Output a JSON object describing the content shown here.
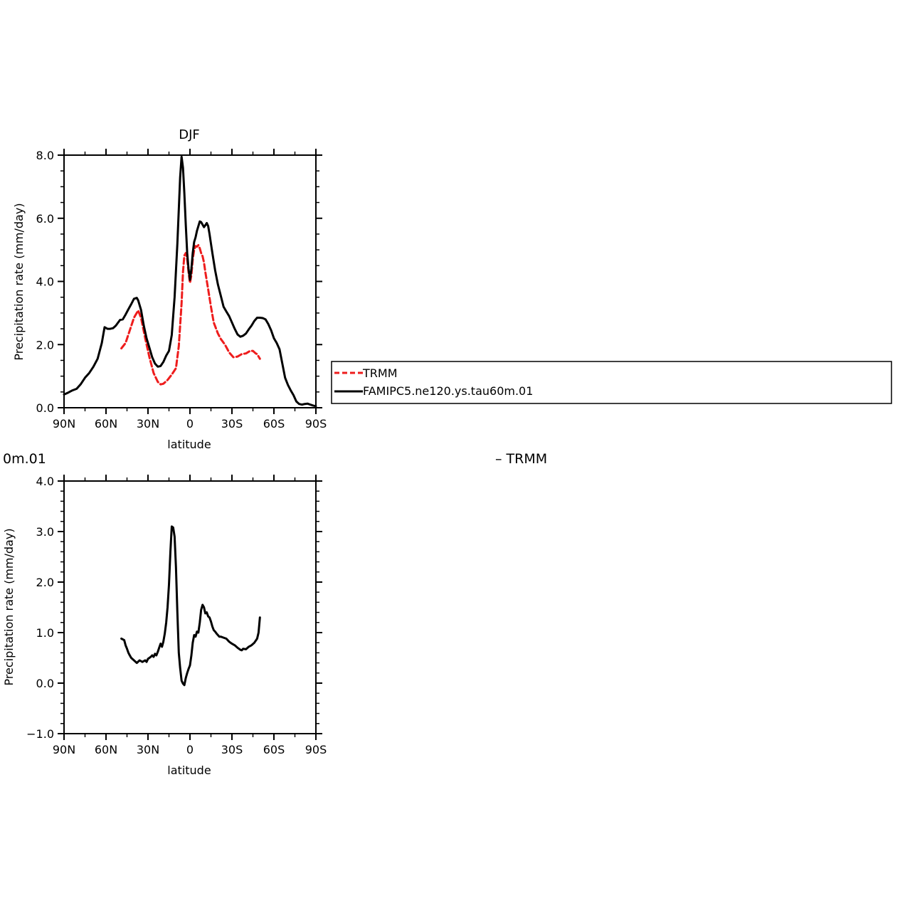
{
  "chart_data": [
    {
      "type": "line",
      "title": "DJF",
      "xlabel": "latitude",
      "ylabel": "Precipitation rate (mm/day)",
      "xlim": [
        90,
        -90
      ],
      "ylim": [
        0,
        8
      ],
      "x_ticks": [
        {
          "value": 90,
          "label": "90N"
        },
        {
          "value": 60,
          "label": "60N"
        },
        {
          "value": 30,
          "label": "30N"
        },
        {
          "value": 0,
          "label": "0"
        },
        {
          "value": -30,
          "label": "30S"
        },
        {
          "value": -60,
          "label": "60S"
        },
        {
          "value": -90,
          "label": "90S"
        }
      ],
      "y_ticks": [
        {
          "value": 0,
          "label": "0.0"
        },
        {
          "value": 2,
          "label": "2.0"
        },
        {
          "value": 4,
          "label": "4.0"
        },
        {
          "value": 6,
          "label": "6.0"
        },
        {
          "value": 8,
          "label": "8.0"
        }
      ],
      "grid": false,
      "legend": {
        "placement": "right",
        "entries": [
          {
            "name": "TRMM",
            "color": "#ee1c1c",
            "dash": "dashed"
          },
          {
            "name": "FAMIPC5.ne120.ys.tau60m.01",
            "color": "#000000",
            "dash": "solid"
          }
        ]
      },
      "series": [
        {
          "name": "TRMM",
          "color": "#ee1c1c",
          "dash": "dashed",
          "x": [
            49,
            46,
            43,
            40,
            37,
            35,
            32,
            29,
            26,
            23,
            21,
            19,
            16,
            13,
            10,
            8,
            6,
            5,
            4,
            3,
            2,
            1,
            0,
            -1,
            -2,
            -3,
            -4,
            -5,
            -6,
            -7,
            -8,
            -9,
            -10,
            -11,
            -13,
            -15,
            -17,
            -20,
            -22,
            -25,
            -28,
            -31,
            -34,
            -37,
            -40,
            -43,
            -45,
            -47,
            -48,
            -50
          ],
          "y": [
            1.88,
            2.05,
            2.45,
            2.85,
            3.08,
            2.85,
            2.2,
            1.6,
            1.1,
            0.82,
            0.74,
            0.76,
            0.88,
            1.05,
            1.25,
            1.95,
            3.3,
            4.3,
            4.82,
            4.9,
            4.7,
            4.3,
            3.95,
            4.2,
            4.7,
            5.0,
            5.12,
            5.1,
            5.15,
            5.05,
            4.9,
            4.8,
            4.6,
            4.3,
            3.75,
            3.2,
            2.7,
            2.35,
            2.18,
            2.0,
            1.75,
            1.6,
            1.62,
            1.7,
            1.72,
            1.8,
            1.8,
            1.72,
            1.7,
            1.55
          ]
        },
        {
          "name": "FAMIPC5.ne120.ys.tau60m.01",
          "color": "#000000",
          "dash": "solid",
          "x": [
            90,
            87,
            84,
            81,
            78,
            75,
            72,
            69,
            66,
            63,
            61,
            59,
            57,
            55,
            53,
            50,
            48,
            46,
            44,
            42,
            40,
            38,
            37,
            35,
            33,
            31,
            29,
            27,
            25,
            23,
            21,
            19,
            17,
            15,
            13,
            11,
            9,
            7,
            6,
            5,
            4,
            3,
            2,
            1,
            0,
            -1,
            -2,
            -3,
            -4,
            -5,
            -6,
            -7,
            -8,
            -9,
            -10,
            -11,
            -12,
            -13,
            -14,
            -15,
            -16,
            -18,
            -20,
            -22,
            -24,
            -26,
            -28,
            -30,
            -32,
            -34,
            -36,
            -38,
            -40,
            -42,
            -44,
            -46,
            -48,
            -50,
            -52,
            -54,
            -56,
            -58,
            -60,
            -62,
            -64,
            -66,
            -68,
            -70,
            -72,
            -74,
            -76,
            -78,
            -80,
            -82,
            -84,
            -86,
            -88,
            -90
          ],
          "y": [
            0.42,
            0.48,
            0.55,
            0.6,
            0.75,
            0.95,
            1.1,
            1.3,
            1.55,
            2.05,
            2.55,
            2.5,
            2.5,
            2.52,
            2.6,
            2.78,
            2.8,
            2.95,
            3.12,
            3.28,
            3.45,
            3.48,
            3.4,
            3.1,
            2.6,
            2.2,
            1.9,
            1.6,
            1.4,
            1.3,
            1.32,
            1.45,
            1.65,
            1.8,
            2.3,
            3.5,
            5.2,
            7.3,
            7.95,
            7.6,
            6.8,
            5.8,
            4.9,
            4.4,
            4.05,
            4.4,
            4.9,
            5.25,
            5.4,
            5.6,
            5.75,
            5.9,
            5.88,
            5.8,
            5.72,
            5.78,
            5.85,
            5.75,
            5.5,
            5.2,
            4.9,
            4.35,
            3.9,
            3.55,
            3.2,
            3.05,
            2.9,
            2.7,
            2.5,
            2.32,
            2.25,
            2.28,
            2.35,
            2.48,
            2.6,
            2.75,
            2.85,
            2.85,
            2.84,
            2.8,
            2.65,
            2.45,
            2.2,
            2.05,
            1.85,
            1.4,
            0.95,
            0.72,
            0.55,
            0.4,
            0.2,
            0.12,
            0.1,
            0.12,
            0.13,
            0.1,
            0.07,
            0.05
          ]
        }
      ]
    },
    {
      "type": "line",
      "title": "0m.01",
      "subtitle": "– TRMM",
      "xlabel": "latitude",
      "ylabel": "Precipitation rate (mm/day)",
      "xlim": [
        90,
        -90
      ],
      "ylim": [
        -1,
        4
      ],
      "x_ticks": [
        {
          "value": 90,
          "label": "90N"
        },
        {
          "value": 60,
          "label": "60N"
        },
        {
          "value": 30,
          "label": "30N"
        },
        {
          "value": 0,
          "label": "0"
        },
        {
          "value": -30,
          "label": "30S"
        },
        {
          "value": -60,
          "label": "60S"
        },
        {
          "value": -90,
          "label": "90S"
        }
      ],
      "y_ticks": [
        {
          "value": -1,
          "label": "−1.0"
        },
        {
          "value": 0,
          "label": "0.0"
        },
        {
          "value": 1,
          "label": "1.0"
        },
        {
          "value": 2,
          "label": "2.0"
        },
        {
          "value": 3,
          "label": "3.0"
        },
        {
          "value": 4,
          "label": "4.0"
        }
      ],
      "grid": false,
      "series": [
        {
          "color": "#000000",
          "dash": "solid",
          "x": [
            49,
            47,
            46,
            45,
            44,
            43,
            42,
            40,
            38,
            36,
            34,
            32,
            31,
            30,
            29,
            28,
            27,
            26,
            25,
            24,
            23,
            22,
            21,
            20,
            19,
            18,
            17,
            16,
            15,
            14,
            13,
            12,
            11,
            10,
            9,
            8,
            7,
            6,
            5,
            4,
            3,
            2,
            1,
            0,
            -1,
            -2,
            -3,
            -4,
            -5,
            -6,
            -7,
            -8,
            -9,
            -10,
            -11,
            -12,
            -13,
            -14,
            -15,
            -16,
            -17,
            -18,
            -19,
            -20,
            -21,
            -22,
            -24,
            -26,
            -28,
            -30,
            -32,
            -34,
            -36,
            -37,
            -38,
            -40,
            -42,
            -44,
            -46,
            -48,
            -49,
            -50
          ],
          "y": [
            0.88,
            0.85,
            0.75,
            0.68,
            0.6,
            0.55,
            0.5,
            0.45,
            0.4,
            0.45,
            0.42,
            0.45,
            0.42,
            0.48,
            0.5,
            0.52,
            0.55,
            0.52,
            0.58,
            0.55,
            0.62,
            0.7,
            0.78,
            0.72,
            0.82,
            0.98,
            1.2,
            1.5,
            1.95,
            2.6,
            3.1,
            3.08,
            2.9,
            2.3,
            1.4,
            0.6,
            0.3,
            0.05,
            -0.01,
            -0.04,
            0.1,
            0.2,
            0.28,
            0.35,
            0.55,
            0.8,
            0.95,
            0.92,
            1.02,
            1.0,
            1.2,
            1.45,
            1.55,
            1.5,
            1.38,
            1.4,
            1.32,
            1.3,
            1.22,
            1.12,
            1.05,
            1.02,
            0.98,
            0.95,
            0.92,
            0.92,
            0.9,
            0.88,
            0.82,
            0.78,
            0.75,
            0.7,
            0.66,
            0.65,
            0.68,
            0.67,
            0.72,
            0.75,
            0.8,
            0.88,
            1.0,
            1.3
          ]
        }
      ]
    }
  ]
}
